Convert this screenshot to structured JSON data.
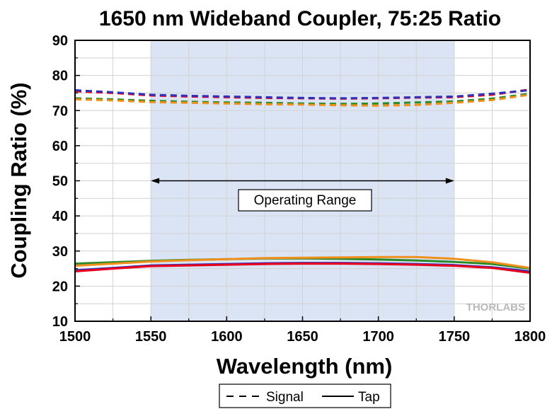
{
  "chart_data": {
    "type": "line",
    "title": "1650 nm Wideband Coupler, 75:25 Ratio",
    "xlabel": "Wavelength (nm)",
    "ylabel": "Coupling Ratio (%)",
    "xlim": [
      1500,
      1800
    ],
    "ylim": [
      10,
      90
    ],
    "xticks": [
      1500,
      1550,
      1600,
      1650,
      1700,
      1750,
      1800
    ],
    "yticks": [
      10,
      20,
      30,
      40,
      50,
      60,
      70,
      80,
      90
    ],
    "grid": true,
    "shaded_region": [
      1550,
      1750
    ],
    "shaded_color": "#dbe4f5",
    "annotation": {
      "text": "Operating Range",
      "arrow_x": [
        1550,
        1750
      ],
      "arrow_y": 50
    },
    "watermark": "THORLABS",
    "legend": {
      "placement": "bottom-center",
      "entries": [
        {
          "label": "Signal",
          "style": "dashed"
        },
        {
          "label": "Tap",
          "style": "solid"
        }
      ]
    },
    "x": [
      1500,
      1525,
      1550,
      1575,
      1600,
      1625,
      1650,
      1675,
      1700,
      1725,
      1750,
      1775,
      1800
    ],
    "series": [
      {
        "style": "dashed",
        "color": "#e8001c",
        "values": [
          75.5,
          75.0,
          74.3,
          74.0,
          73.8,
          73.6,
          73.5,
          73.4,
          73.5,
          73.7,
          73.8,
          74.5,
          76.0
        ]
      },
      {
        "style": "dashed",
        "color": "#3330b8",
        "values": [
          75.8,
          75.2,
          74.5,
          74.2,
          74.0,
          73.8,
          73.6,
          73.5,
          73.6,
          73.8,
          74.0,
          74.8,
          75.8
        ]
      },
      {
        "style": "dashed",
        "color": "#2a8a2a",
        "values": [
          73.5,
          73.2,
          72.8,
          72.5,
          72.3,
          72.2,
          72.0,
          71.9,
          72.0,
          72.3,
          72.6,
          73.4,
          74.8
        ]
      },
      {
        "style": "dashed",
        "color": "#f0901c",
        "values": [
          73.2,
          72.9,
          72.4,
          72.2,
          72.0,
          71.8,
          71.7,
          71.5,
          71.4,
          71.6,
          72.2,
          73.0,
          74.5
        ]
      },
      {
        "style": "solid",
        "color": "#e8001c",
        "values": [
          24.2,
          25.0,
          25.7,
          25.9,
          26.1,
          26.3,
          26.4,
          26.4,
          26.3,
          26.1,
          25.8,
          25.2,
          23.8
        ]
      },
      {
        "style": "solid",
        "color": "#3330b8",
        "values": [
          24.5,
          25.2,
          25.9,
          26.1,
          26.3,
          26.5,
          26.6,
          26.6,
          26.5,
          26.3,
          26.0,
          25.4,
          24.2
        ]
      },
      {
        "style": "solid",
        "color": "#2a8a2a",
        "values": [
          26.4,
          26.8,
          27.2,
          27.5,
          27.7,
          27.9,
          27.9,
          27.8,
          27.6,
          27.3,
          26.9,
          26.3,
          25.0
        ]
      },
      {
        "style": "solid",
        "color": "#f0901c",
        "values": [
          25.8,
          26.4,
          27.0,
          27.4,
          27.7,
          28.0,
          28.1,
          28.2,
          28.3,
          28.3,
          27.8,
          26.8,
          25.2
        ]
      }
    ]
  }
}
